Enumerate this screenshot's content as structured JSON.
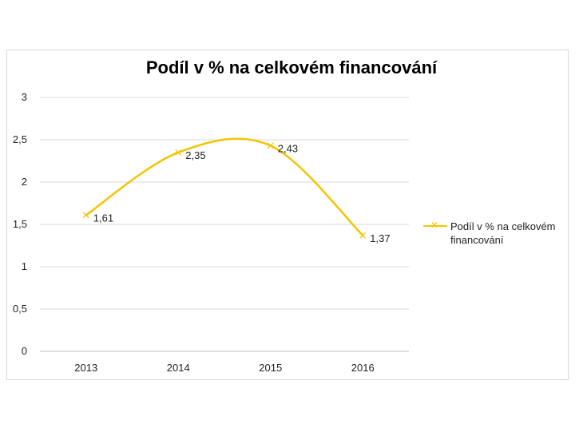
{
  "chart_data": {
    "type": "line",
    "title": "Podíl v % na celkovém financování",
    "categories": [
      "2013",
      "2014",
      "2015",
      "2016"
    ],
    "series": [
      {
        "name": "Podíl v % na celkovém financování",
        "values": [
          1.61,
          2.35,
          2.43,
          1.37
        ],
        "value_labels": [
          "1,61",
          "2,35",
          "2,43",
          "1,37"
        ],
        "color": "#f5c400",
        "smooth": true,
        "marker": "x"
      }
    ],
    "y_ticks": [
      {
        "value": 0,
        "label": "0"
      },
      {
        "value": 0.5,
        "label": "0,5"
      },
      {
        "value": 1,
        "label": "1"
      },
      {
        "value": 1.5,
        "label": "1,5"
      },
      {
        "value": 2,
        "label": "2"
      },
      {
        "value": 2.5,
        "label": "2,5"
      },
      {
        "value": 3,
        "label": "3"
      }
    ],
    "ylim": [
      0,
      3
    ],
    "grid": true,
    "legend": "right",
    "xlabel": "",
    "ylabel": ""
  }
}
